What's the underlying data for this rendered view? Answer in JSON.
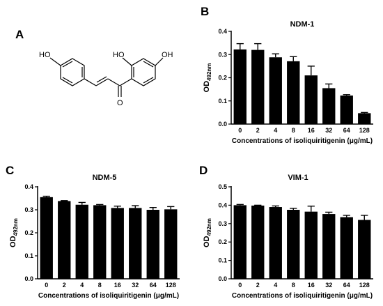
{
  "panel_labels": {
    "a": "A",
    "b": "B",
    "c": "C",
    "d": "D"
  },
  "structure": {
    "atom_labels": [
      "HO",
      "HO",
      "OH",
      "O"
    ]
  },
  "chart_data": [
    {
      "panel": "B",
      "type": "bar",
      "title": "NDM-1",
      "categories": [
        "0",
        "2",
        "4",
        "8",
        "16",
        "32",
        "64",
        "128"
      ],
      "values": [
        0.322,
        0.32,
        0.288,
        0.271,
        0.21,
        0.155,
        0.123,
        0.047
      ],
      "errors": [
        0.025,
        0.027,
        0.015,
        0.02,
        0.04,
        0.018,
        0.004,
        0.003
      ],
      "xlabel": "Concentrations of isoliquiritigenin (μg/mL)",
      "ylabel_main": "OD",
      "ylabel_sub": "492nm",
      "ylim": [
        0,
        0.4
      ],
      "yticks": [
        "0.0",
        "0.1",
        "0.2",
        "0.3",
        "0.4"
      ],
      "bar_color": "#000000"
    },
    {
      "panel": "C",
      "type": "bar",
      "title": "NDM-5",
      "categories": [
        "0",
        "2",
        "4",
        "8",
        "16",
        "32",
        "64",
        "128"
      ],
      "values": [
        0.355,
        0.338,
        0.322,
        0.32,
        0.308,
        0.308,
        0.3,
        0.302
      ],
      "errors": [
        0.004,
        0.002,
        0.01,
        0.003,
        0.008,
        0.01,
        0.01,
        0.012
      ],
      "xlabel": "Concentrations of isoliquiritigenin (μg/mL)",
      "ylabel_main": "OD",
      "ylabel_sub": "492nm",
      "ylim": [
        0,
        0.4
      ],
      "yticks": [
        "0.0",
        "0.1",
        "0.2",
        "0.3",
        "0.4"
      ],
      "bar_color": "#000000"
    },
    {
      "panel": "D",
      "type": "bar",
      "title": "VIM-1",
      "categories": [
        "0",
        "2",
        "4",
        "8",
        "16",
        "32",
        "64",
        "128"
      ],
      "values": [
        0.4,
        0.398,
        0.39,
        0.375,
        0.365,
        0.352,
        0.335,
        0.32
      ],
      "errors": [
        0.004,
        0.002,
        0.006,
        0.008,
        0.03,
        0.01,
        0.01,
        0.025
      ],
      "xlabel": "Concentrations of isoliquiritigenin (μg/mL)",
      "ylabel_main": "OD",
      "ylabel_sub": "492nm",
      "ylim": [
        0,
        0.5
      ],
      "yticks": [
        "0.0",
        "0.1",
        "0.2",
        "0.3",
        "0.4",
        "0.5"
      ],
      "bar_color": "#000000"
    }
  ]
}
